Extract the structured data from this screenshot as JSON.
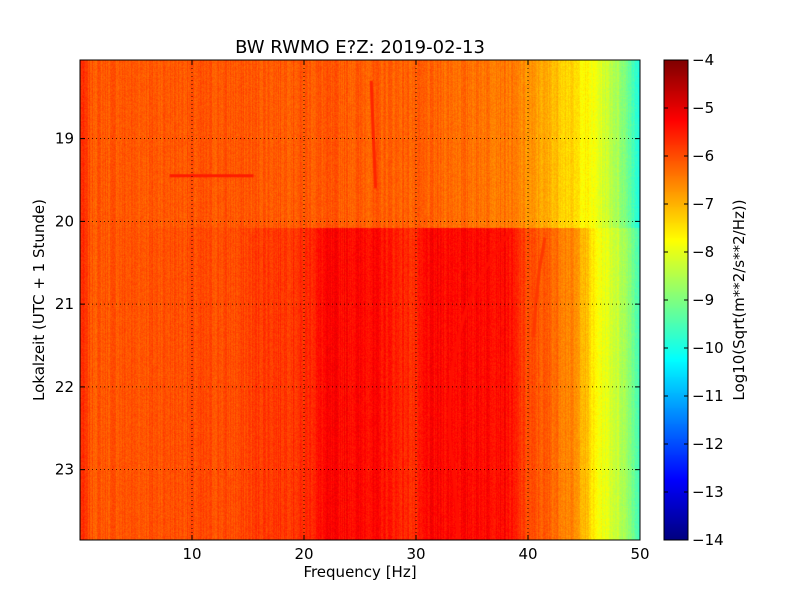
{
  "chart_data": {
    "type": "heatmap",
    "title": "BW RWMO E?Z: 2019-02-13",
    "xlabel": "Frequency [Hz]",
    "ylabel": "Lokalzeit (UTC + 1 Stunde)",
    "xlim": [
      0,
      50
    ],
    "ylim": [
      23.85,
      18.05
    ],
    "x_ticks": [
      10,
      20,
      30,
      40,
      50
    ],
    "x_tick_labels": [
      "10",
      "20",
      "30",
      "40",
      "50"
    ],
    "y_ticks": [
      19,
      20,
      21,
      22,
      23
    ],
    "y_tick_labels": [
      "19",
      "20",
      "21",
      "22",
      "23"
    ],
    "grid": true,
    "colorbar": {
      "label": "Log10(Sqrt(m**2/s**2/Hz))",
      "range": [
        -14,
        -4
      ],
      "ticks": [
        -4,
        -5,
        -6,
        -7,
        -8,
        -9,
        -10,
        -11,
        -12,
        -13,
        -14
      ],
      "tick_labels": [
        "−4",
        "−5",
        "−6",
        "−7",
        "−8",
        "−9",
        "−10",
        "−11",
        "−12",
        "−13",
        "−14"
      ],
      "colormap": "jet"
    },
    "regimes": [
      {
        "time_range": [
          18.05,
          20.08
        ],
        "spectrum": [
          [
            0,
            -5.6
          ],
          [
            1,
            -6.1
          ],
          [
            5,
            -6.1
          ],
          [
            10,
            -6.1
          ],
          [
            20,
            -6.1
          ],
          [
            30,
            -6.2
          ],
          [
            38,
            -6.4
          ],
          [
            40,
            -6.7
          ],
          [
            42,
            -7.0
          ],
          [
            44,
            -7.4
          ],
          [
            46,
            -7.9
          ],
          [
            48,
            -8.6
          ],
          [
            49,
            -9.2
          ],
          [
            50,
            -10.0
          ]
        ]
      },
      {
        "time_range": [
          20.08,
          23.85
        ],
        "spectrum": [
          [
            0,
            -5.6
          ],
          [
            1,
            -6.1
          ],
          [
            10,
            -6.0
          ],
          [
            14,
            -6.0
          ],
          [
            16,
            -5.8
          ],
          [
            20,
            -5.7
          ],
          [
            22,
            -5.3
          ],
          [
            26,
            -5.3
          ],
          [
            29,
            -5.6
          ],
          [
            30,
            -5.7
          ],
          [
            31,
            -5.3
          ],
          [
            38,
            -5.3
          ],
          [
            40,
            -6.0
          ],
          [
            42,
            -6.2
          ],
          [
            44,
            -6.6
          ],
          [
            45,
            -7.0
          ],
          [
            46,
            -7.7
          ],
          [
            48,
            -8.3
          ],
          [
            49,
            -8.8
          ],
          [
            50,
            -9.6
          ]
        ]
      }
    ],
    "features": [
      {
        "type": "line",
        "values": -5.4,
        "points": [
          [
            38.5,
            20.1
          ],
          [
            37.5,
            20.3
          ],
          [
            36.5,
            20.5
          ],
          [
            35.5,
            20.75
          ],
          [
            34.5,
            21.05
          ],
          [
            33.8,
            21.4
          ],
          [
            33.2,
            21.8
          ],
          [
            33.0,
            22.2
          ],
          [
            33.0,
            22.6
          ],
          [
            33.3,
            23.0
          ],
          [
            33.6,
            23.4
          ],
          [
            33.8,
            23.85
          ]
        ]
      },
      {
        "type": "line",
        "values": -5.6,
        "points": [
          [
            26.0,
            18.3
          ],
          [
            26.2,
            19.0
          ],
          [
            26.4,
            19.6
          ]
        ]
      },
      {
        "type": "line",
        "values": -5.8,
        "points": [
          [
            41.5,
            20.2
          ],
          [
            41.0,
            20.6
          ],
          [
            40.7,
            21.0
          ],
          [
            40.5,
            21.4
          ]
        ]
      },
      {
        "type": "line",
        "values": -5.5,
        "points": [
          [
            8.0,
            19.45
          ],
          [
            15.5,
            19.45
          ]
        ]
      }
    ]
  }
}
